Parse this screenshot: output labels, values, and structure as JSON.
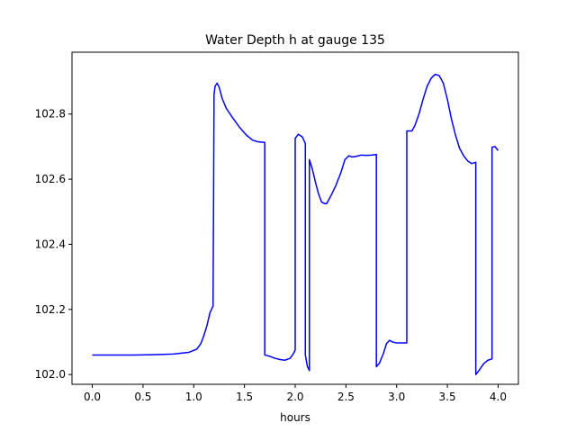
{
  "chart_data": {
    "type": "line",
    "title": "Water Depth h at gauge 135",
    "xlabel": "hours",
    "ylabel": "",
    "xlim": [
      -0.2,
      4.2
    ],
    "ylim": [
      101.97,
      102.99
    ],
    "xticks": [
      0.0,
      0.5,
      1.0,
      1.5,
      2.0,
      2.5,
      3.0,
      3.5,
      4.0
    ],
    "xtick_labels": [
      "0.0",
      "0.5",
      "1.0",
      "1.5",
      "2.0",
      "2.5",
      "3.0",
      "3.5",
      "4.0"
    ],
    "yticks": [
      102.0,
      102.2,
      102.4,
      102.6,
      102.8
    ],
    "ytick_labels": [
      "102.0",
      "102.2",
      "102.4",
      "102.6",
      "102.8"
    ],
    "grid": false,
    "series": [
      {
        "color": "#0000ff",
        "x": [
          0.0,
          0.2,
          0.4,
          0.6,
          0.8,
          0.95,
          1.03,
          1.07,
          1.1,
          1.13,
          1.16,
          1.19,
          1.195,
          1.2,
          1.21,
          1.23,
          1.25,
          1.28,
          1.32,
          1.38,
          1.45,
          1.52,
          1.58,
          1.63,
          1.7,
          1.7,
          1.75,
          1.8,
          1.85,
          1.9,
          1.95,
          1.98,
          2.0,
          2.0,
          2.03,
          2.07,
          2.1,
          2.1,
          2.12,
          2.14,
          2.14,
          2.17,
          2.2,
          2.23,
          2.26,
          2.29,
          2.31,
          2.35,
          2.4,
          2.45,
          2.49,
          2.53,
          2.56,
          2.6,
          2.65,
          2.7,
          2.75,
          2.8,
          2.8,
          2.83,
          2.87,
          2.9,
          2.93,
          2.96,
          3.0,
          3.05,
          3.1,
          3.1,
          3.15,
          3.18,
          3.22,
          3.26,
          3.3,
          3.34,
          3.38,
          3.42,
          3.46,
          3.5,
          3.54,
          3.58,
          3.62,
          3.66,
          3.7,
          3.74,
          3.78,
          3.78,
          3.82,
          3.86,
          3.9,
          3.94,
          3.94,
          3.97,
          4.0
        ],
        "y": [
          102.06,
          102.06,
          102.06,
          102.061,
          102.063,
          102.068,
          102.078,
          102.095,
          102.12,
          102.15,
          102.19,
          102.21,
          102.5,
          102.86,
          102.885,
          102.895,
          102.883,
          102.848,
          102.818,
          102.79,
          102.76,
          102.735,
          102.72,
          102.715,
          102.713,
          102.06,
          102.056,
          102.05,
          102.046,
          102.044,
          102.05,
          102.063,
          102.075,
          102.725,
          102.738,
          102.73,
          102.71,
          102.06,
          102.025,
          102.012,
          102.66,
          102.63,
          102.59,
          102.555,
          102.53,
          102.525,
          102.525,
          102.548,
          102.58,
          102.62,
          102.66,
          102.672,
          102.668,
          102.67,
          102.674,
          102.673,
          102.674,
          102.676,
          102.024,
          102.035,
          102.065,
          102.095,
          102.105,
          102.1,
          102.097,
          102.097,
          102.097,
          102.748,
          102.748,
          102.765,
          102.8,
          102.845,
          102.885,
          102.91,
          102.922,
          102.918,
          102.895,
          102.845,
          102.785,
          102.735,
          102.695,
          102.672,
          102.656,
          102.648,
          102.652,
          102.0,
          102.016,
          102.034,
          102.044,
          102.048,
          102.698,
          102.7,
          102.688
        ]
      }
    ]
  }
}
